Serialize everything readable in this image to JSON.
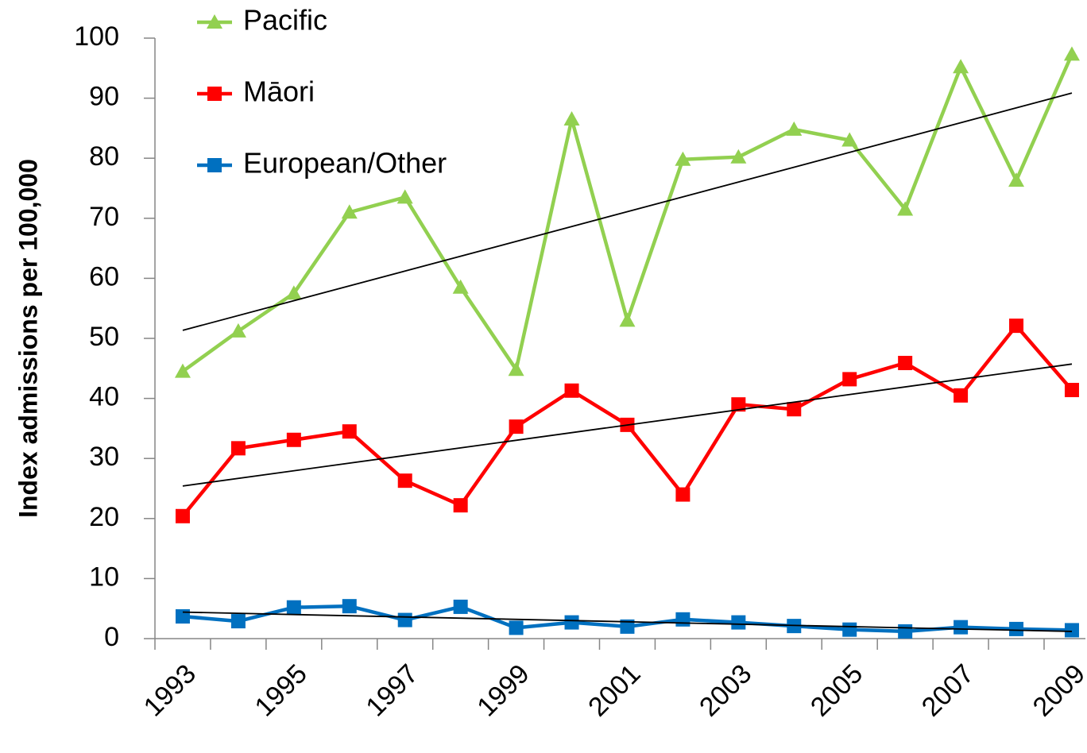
{
  "chart_data": {
    "type": "line",
    "y_label": "Index admissions per 100,000",
    "categories": [
      "1993",
      null,
      "1995",
      null,
      "1997",
      null,
      "1999",
      null,
      "2001",
      null,
      "2003",
      null,
      "2005",
      null,
      "2007",
      null,
      "2009"
    ],
    "series": [
      {
        "name": "Pacific",
        "color": "#92d050",
        "marker": "triangle",
        "values": [
          44.5,
          51.2,
          57.5,
          71,
          73.5,
          58.5,
          44.8,
          86.5,
          53,
          79.8,
          80.2,
          84.8,
          83,
          71.5,
          95.2,
          76.3,
          97.3
        ]
      },
      {
        "name": "Māori",
        "color": "#ff0000",
        "marker": "square",
        "values": [
          20.4,
          31.7,
          33.1,
          34.5,
          26.3,
          22.2,
          35.3,
          41.3,
          35.6,
          24,
          39,
          38.2,
          43.2,
          45.9,
          40.5,
          52.1,
          41.4
        ]
      },
      {
        "name": "European/Other",
        "color": "#0070c0",
        "marker": "square",
        "values": [
          3.7,
          2.9,
          5.2,
          5.4,
          3.1,
          5.3,
          1.8,
          2.7,
          2.0,
          3.2,
          2.7,
          2.1,
          1.5,
          1.2,
          1.9,
          1.6,
          1.4
        ]
      }
    ],
    "ylim": [
      0,
      100
    ],
    "yticks": [
      0,
      10,
      20,
      30,
      40,
      50,
      60,
      70,
      80,
      90,
      100
    ],
    "trendline": true,
    "legend": "top-left"
  }
}
